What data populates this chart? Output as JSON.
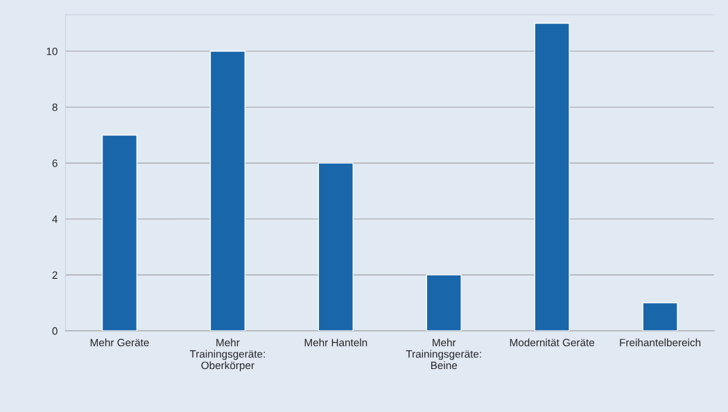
{
  "chart_data": {
    "type": "bar",
    "categories": [
      "Mehr Geräte",
      "Mehr Trainingsgeräte: Oberkörper",
      "Mehr Hanteln",
      "Mehr Trainingsgeräte: Beine",
      "Modernität Geräte",
      "Freihantelbereich"
    ],
    "values": [
      7,
      10,
      6,
      2,
      11,
      1
    ],
    "color": "#1a66ab",
    "ylim": [
      0,
      11.3
    ],
    "yticks": [
      0,
      2,
      4,
      6,
      8,
      10
    ],
    "grid": "y",
    "legend": false
  }
}
